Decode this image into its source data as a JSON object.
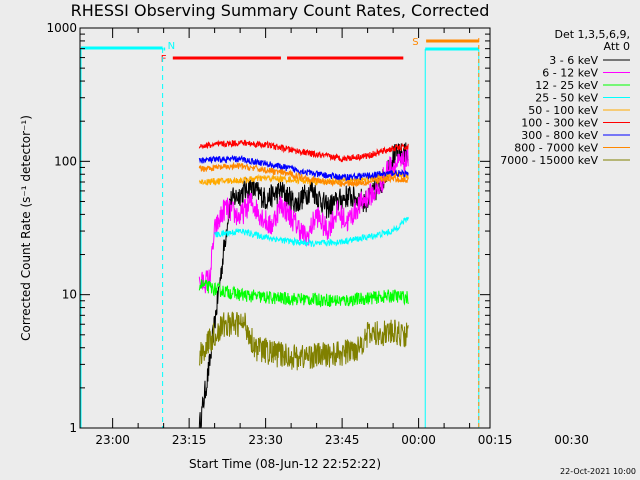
{
  "chart_data": {
    "type": "line",
    "title": "RHESSI Observing Summary Count Rates, Corrected",
    "xlabel": "Start Time (08-Jun-12 22:52:22)",
    "ylabel": "Corrected Count Rate (s⁻¹ detector⁻¹)",
    "y_scale": "log",
    "ylim": [
      1,
      1000
    ],
    "y_ticks": [
      "1",
      "10",
      "100",
      "1000"
    ],
    "x_ticks": [
      "23:00",
      "23:15",
      "23:30",
      "23:45",
      "00:00",
      "00:15",
      "00:30"
    ],
    "x_range_minutes": [
      -6.4,
      74
    ],
    "legend_header": [
      "Det 1,3,5,6,9,",
      "Att 0"
    ],
    "footer": "22-Oct-2021 10:00",
    "series": [
      {
        "name": "3 - 6 keV",
        "color": "#000000",
        "points": [
          [
            17,
            1.0
          ],
          [
            19,
            3.0
          ],
          [
            23,
            50
          ],
          [
            27,
            65
          ],
          [
            30,
            52
          ],
          [
            33,
            60
          ],
          [
            36,
            48
          ],
          [
            39,
            62
          ],
          [
            42,
            45
          ],
          [
            46,
            55
          ],
          [
            50,
            50
          ],
          [
            53,
            72
          ],
          [
            55,
            110
          ],
          [
            58,
            115
          ]
        ]
      },
      {
        "name": "6 - 12 keV",
        "color": "#ff00ff",
        "points": [
          [
            17,
            12
          ],
          [
            19,
            13
          ],
          [
            20,
            30
          ],
          [
            22,
            45
          ],
          [
            25,
            38
          ],
          [
            27,
            50
          ],
          [
            29,
            40
          ],
          [
            31,
            32
          ],
          [
            33,
            48
          ],
          [
            35,
            38
          ],
          [
            37,
            30
          ],
          [
            38,
            26
          ],
          [
            40,
            40
          ],
          [
            42,
            30
          ],
          [
            44,
            42
          ],
          [
            46,
            35
          ],
          [
            48,
            45
          ],
          [
            50,
            55
          ],
          [
            52,
            60
          ],
          [
            54,
            90
          ],
          [
            56,
            95
          ],
          [
            58,
            100
          ]
        ]
      },
      {
        "name": "12 - 25 keV",
        "color": "#00ff00",
        "points": [
          [
            17,
            12
          ],
          [
            20,
            11
          ],
          [
            25,
            10
          ],
          [
            30,
            9.5
          ],
          [
            35,
            9.3
          ],
          [
            40,
            9.2
          ],
          [
            45,
            9.0
          ],
          [
            50,
            9.4
          ],
          [
            55,
            9.8
          ],
          [
            58,
            9.5
          ]
        ]
      },
      {
        "name": "25 - 50 keV",
        "color": "#00ffff",
        "points": [
          [
            20,
            28
          ],
          [
            25,
            30
          ],
          [
            30,
            27
          ],
          [
            35,
            25
          ],
          [
            40,
            24
          ],
          [
            45,
            25
          ],
          [
            50,
            27
          ],
          [
            55,
            30
          ],
          [
            58,
            38
          ]
        ]
      },
      {
        "name": "50 - 100 keV",
        "color": "#ffaa00",
        "points": [
          [
            17,
            70
          ],
          [
            25,
            72
          ],
          [
            30,
            75
          ],
          [
            35,
            73
          ],
          [
            40,
            70
          ],
          [
            45,
            72
          ],
          [
            50,
            74
          ],
          [
            55,
            80
          ],
          [
            58,
            78
          ]
        ]
      },
      {
        "name": "100 - 300 keV",
        "color": "#ff0000",
        "points": [
          [
            17,
            130
          ],
          [
            25,
            138
          ],
          [
            30,
            133
          ],
          [
            35,
            122
          ],
          [
            40,
            112
          ],
          [
            45,
            105
          ],
          [
            50,
            110
          ],
          [
            55,
            125
          ],
          [
            58,
            128
          ]
        ]
      },
      {
        "name": "300 - 800 keV",
        "color": "#0000ff",
        "points": [
          [
            17,
            102
          ],
          [
            25,
            104
          ],
          [
            30,
            96
          ],
          [
            35,
            88
          ],
          [
            40,
            80
          ],
          [
            45,
            76
          ],
          [
            50,
            78
          ],
          [
            55,
            82
          ],
          [
            58,
            80
          ]
        ]
      },
      {
        "name": "800 - 7000 keV",
        "color": "#ff8800",
        "points": [
          [
            17,
            88
          ],
          [
            25,
            92
          ],
          [
            30,
            86
          ],
          [
            35,
            80
          ],
          [
            40,
            72
          ],
          [
            45,
            68
          ],
          [
            50,
            70
          ],
          [
            55,
            74
          ],
          [
            58,
            72
          ]
        ]
      },
      {
        "name": "7000 - 15000 keV",
        "color": "#808000",
        "points": [
          [
            17,
            3.5
          ],
          [
            19,
            4.5
          ],
          [
            22,
            6.0
          ],
          [
            26,
            6.0
          ],
          [
            28,
            4.0
          ],
          [
            32,
            3.6
          ],
          [
            36,
            3.4
          ],
          [
            40,
            3.5
          ],
          [
            45,
            3.6
          ],
          [
            48,
            4.0
          ],
          [
            50,
            5.0
          ],
          [
            54,
            5.2
          ],
          [
            58,
            5.0
          ]
        ]
      }
    ],
    "flags": [
      {
        "label": "N",
        "color": "#00ffff",
        "start": 10,
        "end": 10.3
      },
      {
        "label": "F",
        "color": "#ff0000",
        "start": 11.8,
        "end": 33.0
      },
      {
        "label": "",
        "color": "#ff0000",
        "start": 34.2,
        "end": 57.0
      },
      {
        "label": "S",
        "color": "#ff8800",
        "start": 61.5,
        "end": 71.8
      }
    ],
    "intervals": [
      {
        "kind": "data",
        "color": "#00ffff",
        "start": -6.2,
        "end": 9.8
      },
      {
        "kind": "night",
        "color": "#00ffff",
        "start": 61.3,
        "end": 71.8
      }
    ]
  }
}
